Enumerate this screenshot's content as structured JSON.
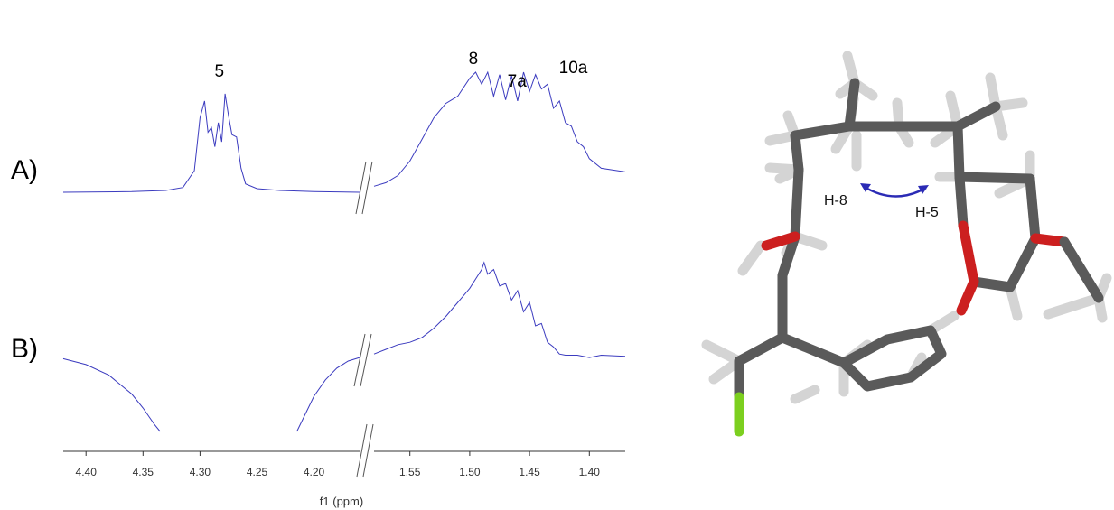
{
  "chart_data": {
    "type": "line",
    "xlabel": "f1 (ppm)",
    "x_reversed": true,
    "axis_breaks": [
      {
        "from": 4.16,
        "to": 1.58
      }
    ],
    "x_segments": [
      {
        "xlim": [
          4.42,
          4.16
        ],
        "ticks": [
          4.4,
          4.35,
          4.3,
          4.25,
          4.2
        ],
        "tick_labels": [
          "4.40",
          "4.35",
          "4.30",
          "4.25",
          "4.20"
        ]
      },
      {
        "xlim": [
          1.58,
          1.37
        ],
        "ticks": [
          1.55,
          1.5,
          1.45,
          1.4
        ],
        "tick_labels": [
          "1.55",
          "1.50",
          "1.45",
          "1.40"
        ]
      }
    ],
    "line_color": "#3b3bbf",
    "grid": false,
    "panels": [
      {
        "label": "A)",
        "peak_labels": [
          {
            "text": "5",
            "ppm": 4.283
          },
          {
            "text": "8",
            "ppm": 1.497
          },
          {
            "text": "7a",
            "ppm": 1.462
          },
          {
            "text": "10a",
            "ppm": 1.427
          }
        ],
        "segments": [
          {
            "x": [
              4.42,
              4.36,
              4.33,
              4.315,
              4.305,
              4.3,
              4.296,
              4.293,
              4.29,
              4.287,
              4.284,
              4.281,
              4.278,
              4.275,
              4.272,
              4.268,
              4.264,
              4.26,
              4.25,
              4.23,
              4.2,
              4.16
            ],
            "y": [
              0.0,
              0.005,
              0.015,
              0.04,
              0.18,
              0.62,
              0.76,
              0.5,
              0.54,
              0.38,
              0.58,
              0.42,
              0.82,
              0.64,
              0.48,
              0.46,
              0.2,
              0.07,
              0.03,
              0.015,
              0.005,
              0.0
            ]
          },
          {
            "x": [
              1.58,
              1.57,
              1.56,
              1.55,
              1.54,
              1.53,
              1.52,
              1.51,
              1.5,
              1.495,
              1.49,
              1.485,
              1.48,
              1.475,
              1.47,
              1.465,
              1.46,
              1.455,
              1.45,
              1.445,
              1.44,
              1.435,
              1.43,
              1.425,
              1.42,
              1.415,
              1.41,
              1.405,
              1.4,
              1.39,
              1.37
            ],
            "y": [
              0.05,
              0.08,
              0.14,
              0.26,
              0.44,
              0.62,
              0.74,
              0.8,
              0.95,
              1.0,
              0.9,
              1.0,
              0.8,
              0.98,
              0.77,
              0.97,
              0.76,
              1.0,
              0.84,
              0.98,
              0.86,
              0.9,
              0.7,
              0.76,
              0.58,
              0.55,
              0.42,
              0.38,
              0.28,
              0.2,
              0.17
            ]
          }
        ]
      },
      {
        "label": "B)",
        "peak_labels": [],
        "segments": [
          {
            "x": [
              4.42,
              4.4,
              4.38,
              4.36,
              4.35,
              4.345,
              4.34,
              4.335
            ],
            "y": [
              0.52,
              0.47,
              0.38,
              0.22,
              0.1,
              0.03,
              -0.04,
              -0.1
            ]
          },
          {
            "x": [
              4.215,
              4.21,
              4.205,
              4.2,
              4.19,
              4.18,
              4.17,
              4.16
            ],
            "y": [
              -0.1,
              0.0,
              0.1,
              0.2,
              0.34,
              0.44,
              0.5,
              0.53
            ]
          },
          {
            "x": [
              1.58,
              1.57,
              1.56,
              1.55,
              1.54,
              1.53,
              1.52,
              1.51,
              1.5,
              1.495,
              1.49,
              1.488,
              1.485,
              1.48,
              1.475,
              1.47,
              1.465,
              1.46,
              1.455,
              1.45,
              1.445,
              1.44,
              1.435,
              1.43,
              1.425,
              1.42,
              1.41,
              1.4,
              1.39,
              1.37
            ],
            "y": [
              0.56,
              0.6,
              0.64,
              0.66,
              0.7,
              0.78,
              0.88,
              1.0,
              1.12,
              1.2,
              1.28,
              1.34,
              1.24,
              1.28,
              1.14,
              1.16,
              1.02,
              1.1,
              0.92,
              1.0,
              0.8,
              0.82,
              0.66,
              0.62,
              0.56,
              0.55,
              0.55,
              0.53,
              0.55,
              0.54
            ]
          }
        ]
      }
    ]
  },
  "molecule": {
    "labels": [
      "H-8",
      "H-5"
    ],
    "noe_arrow_color": "#2b2bb5",
    "atom_colors": {
      "carbon": "#5a5a5a",
      "hydrogen": "#d4d4d4",
      "oxygen": "#cc1f1f",
      "fluorine": "#7ccf1f"
    }
  }
}
